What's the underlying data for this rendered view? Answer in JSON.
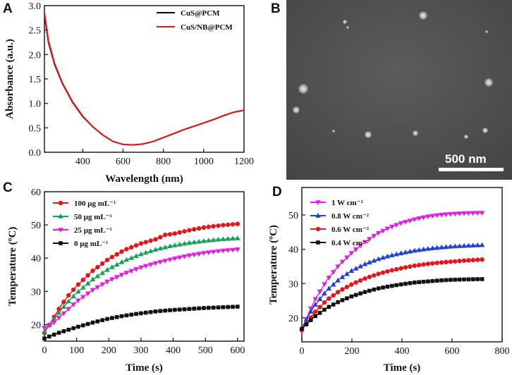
{
  "panels": {
    "A": {
      "label": "A"
    },
    "B": {
      "label": "B",
      "scale_bar": "500 nm"
    },
    "C": {
      "label": "C"
    },
    "D": {
      "label": "D"
    }
  },
  "chart_data": [
    {
      "id": "A",
      "type": "line",
      "xlabel": "Wavelength (nm)",
      "ylabel": "Absorbance (a.u.)",
      "xlim": [
        210,
        1200
      ],
      "ylim": [
        0.0,
        3.0
      ],
      "xticks": [
        400,
        600,
        800,
        1000,
        1200
      ],
      "yticks": [
        0.0,
        0.5,
        1.0,
        1.5,
        2.0,
        2.5,
        3.0
      ],
      "legend_position": "top-right",
      "series": [
        {
          "name": "CuS@PCM",
          "color": "#000000",
          "x": [
            210,
            230,
            260,
            300,
            350,
            400,
            450,
            500,
            550,
            600,
            650,
            700,
            750,
            800,
            850,
            900,
            950,
            1000,
            1050,
            1100,
            1150,
            1200
          ],
          "y": [
            2.82,
            2.25,
            1.8,
            1.4,
            1.02,
            0.73,
            0.52,
            0.35,
            0.22,
            0.16,
            0.15,
            0.17,
            0.22,
            0.3,
            0.38,
            0.46,
            0.53,
            0.6,
            0.67,
            0.75,
            0.82,
            0.86
          ]
        },
        {
          "name": "CuS/NB@PCM",
          "color": "#e8141c",
          "x": [
            210,
            230,
            260,
            300,
            350,
            400,
            450,
            500,
            550,
            600,
            650,
            700,
            750,
            800,
            850,
            900,
            950,
            1000,
            1050,
            1100,
            1150,
            1200
          ],
          "y": [
            2.86,
            2.28,
            1.82,
            1.41,
            1.03,
            0.74,
            0.52,
            0.35,
            0.22,
            0.16,
            0.15,
            0.17,
            0.22,
            0.3,
            0.38,
            0.46,
            0.53,
            0.6,
            0.67,
            0.75,
            0.82,
            0.86
          ]
        }
      ]
    },
    {
      "id": "C",
      "type": "line",
      "xlabel": "Time (s)",
      "ylabel": "Temperature (ºC)",
      "xlim": [
        0,
        620
      ],
      "ylim": [
        15,
        60
      ],
      "xticks": [
        0,
        100,
        200,
        300,
        400,
        500,
        600
      ],
      "yticks": [
        20,
        30,
        40,
        50,
        60
      ],
      "legend_position": "top-left",
      "series": [
        {
          "name": "100 μg mL⁻¹",
          "color": "#e8141c",
          "marker": "circle",
          "x": [
            0,
            25,
            50,
            75,
            100,
            150,
            200,
            250,
            300,
            350,
            375,
            400,
            450,
            500,
            550,
            600
          ],
          "y": [
            17.5,
            21.5,
            25.5,
            28.8,
            31.6,
            36.2,
            39.8,
            42.5,
            44.4,
            45.8,
            47.0,
            47.3,
            48.4,
            49.3,
            49.9,
            50.3
          ]
        },
        {
          "name": "50 μg mL⁻¹",
          "color": "#16a05a",
          "marker": "triangle-up",
          "x": [
            0,
            25,
            50,
            75,
            100,
            150,
            200,
            250,
            300,
            350,
            400,
            450,
            500,
            550,
            600
          ],
          "y": [
            18.0,
            21.0,
            24.2,
            27.0,
            29.5,
            33.6,
            36.8,
            39.3,
            41.2,
            42.7,
            43.8,
            44.6,
            45.2,
            45.7,
            46.0
          ]
        },
        {
          "name": "25 μg mL⁻¹",
          "color": "#e01ee0",
          "marker": "triangle-down",
          "x": [
            0,
            25,
            50,
            75,
            100,
            150,
            200,
            250,
            300,
            350,
            400,
            450,
            500,
            550,
            600
          ],
          "y": [
            19.0,
            20.2,
            22.5,
            24.7,
            26.9,
            30.4,
            33.2,
            35.4,
            37.2,
            38.6,
            39.8,
            40.8,
            41.6,
            42.2,
            42.6
          ]
        },
        {
          "name": "0 μg mL⁻¹",
          "color": "#111111",
          "marker": "square",
          "x": [
            0,
            25,
            50,
            100,
            150,
            200,
            250,
            300,
            350,
            400,
            450,
            500,
            550,
            600
          ],
          "y": [
            15.8,
            16.8,
            17.7,
            19.2,
            20.6,
            21.8,
            22.7,
            23.4,
            24.0,
            24.4,
            24.7,
            25.0,
            25.2,
            25.4
          ]
        }
      ]
    },
    {
      "id": "D",
      "type": "line",
      "xlabel": "Time (s)",
      "ylabel": "Temperature (ºC)",
      "xlim": [
        0,
        800
      ],
      "ylim": [
        13,
        58
      ],
      "xticks": [
        0,
        200,
        400,
        600,
        800
      ],
      "yticks": [
        20,
        30,
        40,
        50
      ],
      "legend_position": "top-left",
      "series": [
        {
          "name": "1 W cm⁻²",
          "color": "#e01ee0",
          "marker": "triangle-down",
          "x": [
            0,
            25,
            50,
            100,
            150,
            200,
            250,
            300,
            350,
            400,
            450,
            500,
            550,
            600,
            650,
            720
          ],
          "y": [
            16.0,
            21.0,
            25.0,
            31.0,
            35.5,
            39.0,
            42.0,
            44.5,
            46.3,
            47.7,
            48.7,
            49.5,
            50.0,
            50.3,
            50.5,
            50.6
          ]
        },
        {
          "name": "0.8 W cm⁻²",
          "color": "#1f3fd6",
          "marker": "triangle-up",
          "x": [
            0,
            25,
            50,
            100,
            150,
            200,
            250,
            300,
            350,
            400,
            450,
            500,
            550,
            600,
            650,
            720
          ],
          "y": [
            17.0,
            20.5,
            23.5,
            28.0,
            31.3,
            33.8,
            35.6,
            37.0,
            38.1,
            38.9,
            39.6,
            40.1,
            40.5,
            40.8,
            41.0,
            41.2
          ]
        },
        {
          "name": "0.6 W cm⁻²",
          "color": "#e8141c",
          "marker": "circle",
          "x": [
            0,
            25,
            50,
            100,
            150,
            200,
            250,
            300,
            350,
            400,
            450,
            500,
            550,
            600,
            650,
            720
          ],
          "y": [
            16.5,
            19.0,
            21.5,
            25.2,
            27.8,
            29.8,
            31.4,
            32.7,
            33.7,
            34.5,
            35.2,
            35.7,
            36.1,
            36.4,
            36.7,
            37.0
          ]
        },
        {
          "name": "0.4 W cm⁻²",
          "color": "#111111",
          "marker": "square",
          "x": [
            0,
            25,
            50,
            100,
            150,
            200,
            250,
            300,
            350,
            400,
            450,
            500,
            550,
            600,
            650,
            720
          ],
          "y": [
            16.8,
            18.6,
            20.3,
            22.9,
            24.8,
            26.3,
            27.5,
            28.5,
            29.2,
            29.8,
            30.3,
            30.6,
            30.9,
            31.1,
            31.2,
            31.3
          ]
        }
      ]
    }
  ]
}
